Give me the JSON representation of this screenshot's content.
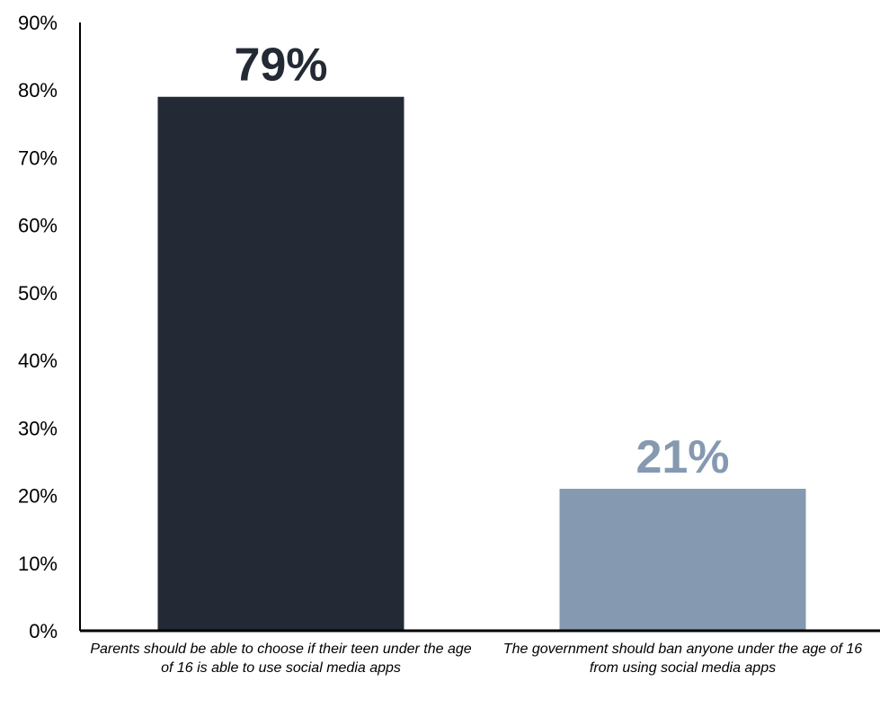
{
  "chart_data": {
    "type": "bar",
    "categories": [
      "Parents should be able to choose if their teen under the age of 16 is able to use social media apps",
      "The government should ban anyone under the age of 16 from using social media apps"
    ],
    "values": [
      79,
      21
    ],
    "data_labels": [
      "79%",
      "21%"
    ],
    "colors": [
      "#232A35",
      "#8599B1"
    ],
    "ylim": [
      0,
      90
    ],
    "yticks": [
      0,
      10,
      20,
      30,
      40,
      50,
      60,
      70,
      80,
      90
    ],
    "ytick_labels": [
      "0%",
      "10%",
      "20%",
      "30%",
      "40%",
      "50%",
      "60%",
      "70%",
      "80%",
      "90%"
    ],
    "grid": false,
    "legend": "none"
  }
}
